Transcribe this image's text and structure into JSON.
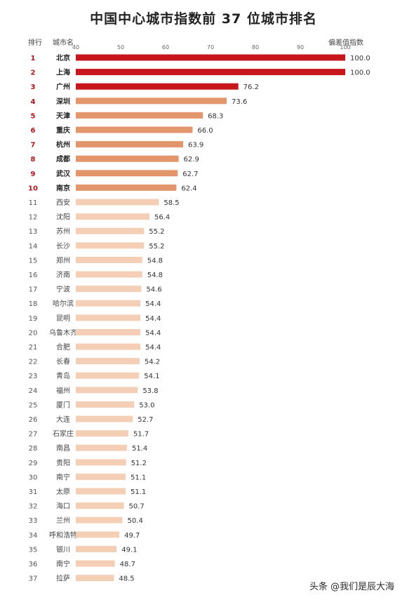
{
  "chart_data": {
    "type": "bar",
    "orientation": "horizontal",
    "title": "中国中心城市指数前 37 位城市排名",
    "rank_header": "排行",
    "category_header": "城市名",
    "value_header": "偏差值指数",
    "xlim": [
      40,
      100
    ],
    "ticks": [
      40,
      50,
      60,
      70,
      80,
      90,
      100
    ],
    "ranks": [
      "1",
      "2",
      "3",
      "4",
      "5",
      "6",
      "7",
      "8",
      "9",
      "10",
      "11",
      "12",
      "13",
      "14",
      "15",
      "16",
      "17",
      "18",
      "19",
      "20",
      "21",
      "22",
      "23",
      "24",
      "25",
      "26",
      "27",
      "28",
      "29",
      "30",
      "31",
      "32",
      "33",
      "34",
      "35",
      "36",
      "37"
    ],
    "categories": [
      "北京",
      "上海",
      "广州",
      "深圳",
      "天津",
      "重庆",
      "杭州",
      "成都",
      "武汉",
      "南京",
      "西安",
      "沈阳",
      "苏州",
      "长沙",
      "郑州",
      "济南",
      "宁波",
      "哈尔滨",
      "昆明",
      "乌鲁木齐",
      "合肥",
      "长春",
      "青岛",
      "福州",
      "厦门",
      "大连",
      "石家庄",
      "南昌",
      "贵阳",
      "南宁",
      "太原",
      "海口",
      "兰州",
      "呼和浩特",
      "银川",
      "南宁",
      "拉萨"
    ],
    "values": [
      100.0,
      100.0,
      76.2,
      73.6,
      68.3,
      66.0,
      63.9,
      62.9,
      62.7,
      62.4,
      58.5,
      56.4,
      55.2,
      55.2,
      54.8,
      54.8,
      54.6,
      54.4,
      54.4,
      54.4,
      54.4,
      54.2,
      54.1,
      53.8,
      53.0,
      52.7,
      51.7,
      51.4,
      51.2,
      51.1,
      51.1,
      50.7,
      50.4,
      49.7,
      49.1,
      48.7,
      48.5
    ],
    "value_labels": [
      "100.0",
      "100.0",
      "76.2",
      "73.6",
      "68.3",
      "66.0",
      "63.9",
      "62.9",
      "62.7",
      "62.4",
      "58.5",
      "56.4",
      "55.2",
      "55.2",
      "54.8",
      "54.8",
      "54.6",
      "54.4",
      "54.4",
      "54.4",
      "54.4",
      "54.2",
      "54.1",
      "53.8",
      "53.0",
      "52.7",
      "51.7",
      "51.4",
      "51.2",
      "51.1",
      "51.1",
      "50.7",
      "50.4",
      "49.7",
      "49.1",
      "48.7",
      "48.5"
    ],
    "colors": {
      "top3": "#c8161d",
      "top4_10": "#e3966c",
      "rest": "#f4cfb6",
      "rank_top": "#b3121a",
      "rank_rest": "#555555"
    },
    "grid": false
  },
  "watermark": "头条 @我们是辰大海"
}
